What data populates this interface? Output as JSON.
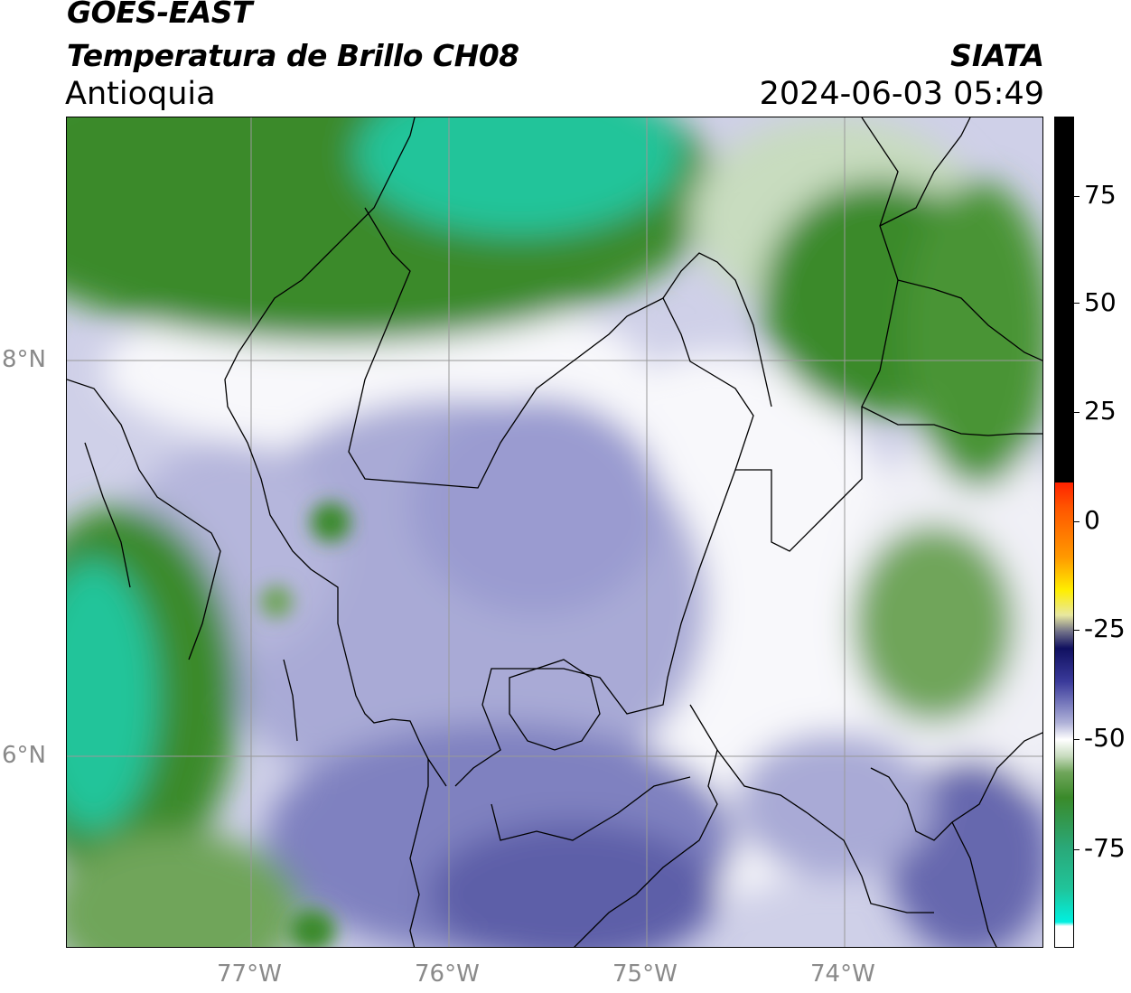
{
  "header": {
    "title_line1": "GOES-EAST",
    "title_line2": "Temperatura de Brillo CH08",
    "region": "Antioquia",
    "org": "SIATA",
    "datetime": "2024-06-03 05:49"
  },
  "map": {
    "lat_labels": [
      "8°N",
      "6°N"
    ],
    "lon_labels": [
      "77°W",
      "76°W",
      "75°W",
      "74°W"
    ],
    "colors": {
      "teal": "#20c49a",
      "green_dark": "#3a8a2a",
      "green_mid": "#6fa55a",
      "green_light": "#c8dcbf",
      "white": "#f8f8fb",
      "lavender_light": "#cfd0e8",
      "lavender": "#a9aad6",
      "purple": "#8486c2",
      "purple_dark": "#5d5fa8",
      "boundary": "#000000",
      "grid": "#999999"
    }
  },
  "colorbar": {
    "labels": [
      "75",
      "50",
      "25",
      "0",
      "-25",
      "-50",
      "-75"
    ],
    "colors": {
      "black": "#000000",
      "red": "#ff2200",
      "orange": "#ff9900",
      "yellow": "#ffee00",
      "navy": "#101060",
      "blue": "#3a3a9a",
      "lavender": "#b0b2d8",
      "white": "#ffffff",
      "green": "#3a8a2a",
      "teal": "#20c49a",
      "cyan": "#00f0e0"
    }
  }
}
